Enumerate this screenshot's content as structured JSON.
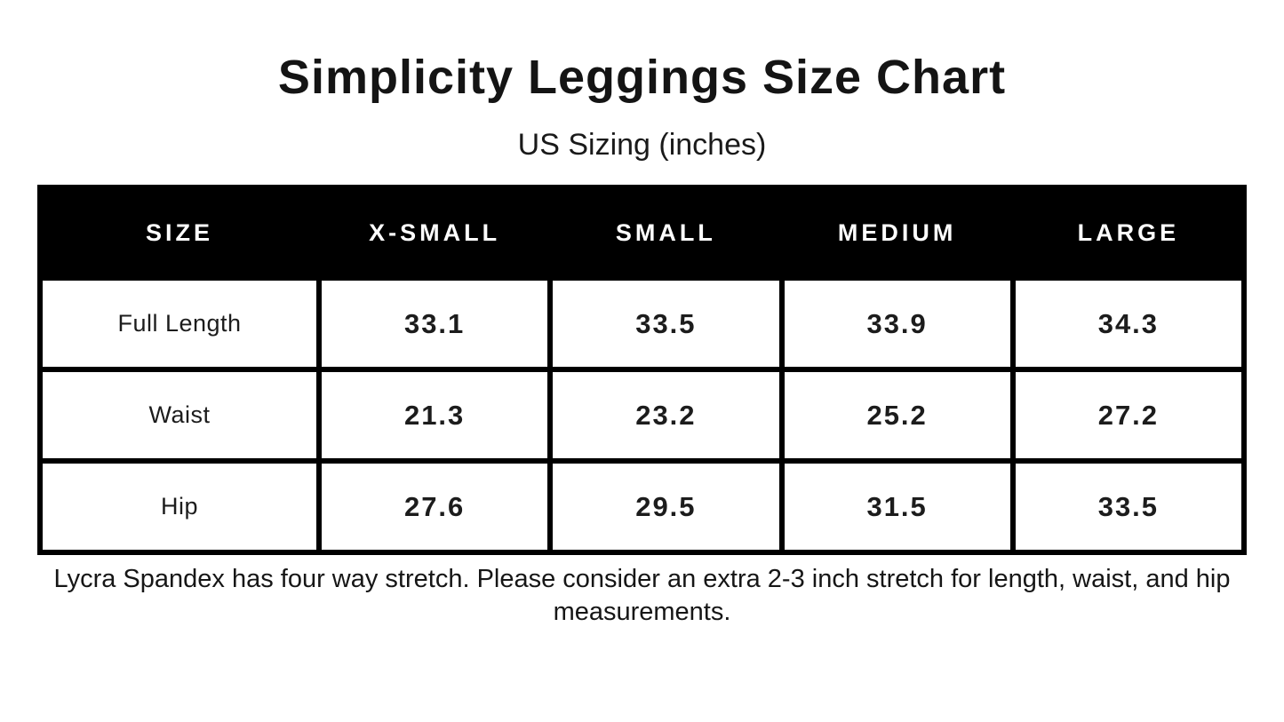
{
  "title": "Simplicity Leggings Size Chart",
  "subtitle": "US Sizing (inches)",
  "footnote": "Lycra Spandex has four way stretch. Please consider an extra 2-3 inch stretch for length, waist, and hip measurements.",
  "chart_data": {
    "type": "table",
    "title": "Simplicity Leggings Size Chart",
    "subtitle": "US Sizing (inches)",
    "units": "inches",
    "columns": [
      "SIZE",
      "X-SMALL",
      "SMALL",
      "MEDIUM",
      "LARGE"
    ],
    "rows": [
      {
        "label": "Full Length",
        "values": [
          "33.1",
          "33.5",
          "33.9",
          "34.3"
        ]
      },
      {
        "label": "Waist",
        "values": [
          "21.3",
          "23.2",
          "25.2",
          "27.2"
        ]
      },
      {
        "label": "Hip",
        "values": [
          "27.6",
          "29.5",
          "31.5",
          "33.5"
        ]
      }
    ],
    "layout": {
      "header_bg": "#000000",
      "header_text_color": "#ffffff",
      "border_color": "#000000",
      "background": "#ffffff",
      "legend": "none",
      "grid": "full-borders"
    }
  }
}
